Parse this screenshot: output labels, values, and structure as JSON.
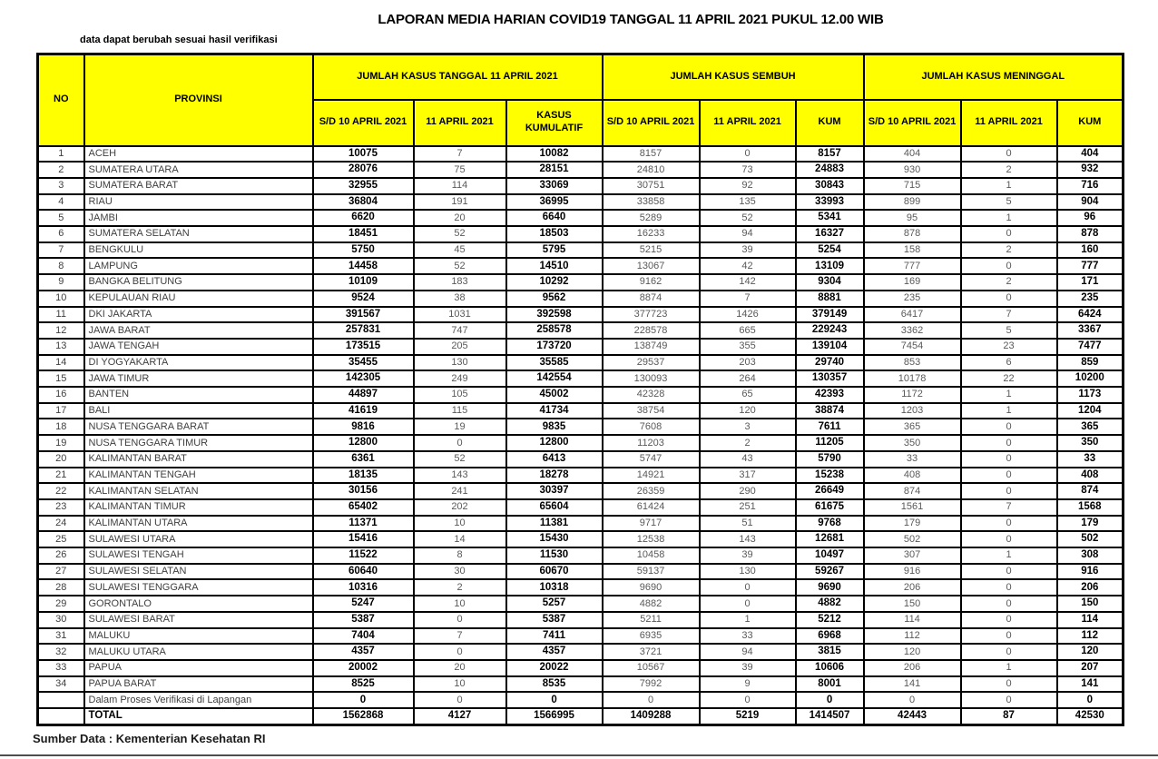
{
  "title": "LAPORAN MEDIA HARIAN COVID19 TANGGAL 11 APRIL 2021 PUKUL 12.00 WIB",
  "note": "data dapat berubah sesuai hasil verifikasi",
  "source": "Sumber Data : Kementerian Kesehatan RI",
  "colors": {
    "header_bg": "#FFFF00",
    "border": "#000000",
    "bold_text": "#000000",
    "muted_text": "#595959"
  },
  "table": {
    "headers": {
      "no": "NO",
      "provinsi": "PROVINSI",
      "groups": [
        {
          "label": "JUMLAH KASUS TANGGAL 11 APRIL 2021",
          "cols": [
            "S/D 10 APRIL 2021",
            "11 APRIL 2021",
            "KASUS KUMULATIF"
          ]
        },
        {
          "label": "JUMLAH KASUS SEMBUH",
          "cols": [
            "S/D 10 APRIL 2021",
            "11 APRIL 2021",
            "KUM"
          ]
        },
        {
          "label": "JUMLAH KASUS MENINGGAL",
          "cols": [
            "S/D 10 APRIL 2021",
            "11 APRIL 2021",
            "KUM"
          ]
        }
      ]
    },
    "rows": [
      {
        "no": "1",
        "provinsi": "ACEH",
        "values": [
          "10075",
          "7",
          "10082",
          "8157",
          "0",
          "8157",
          "404",
          "0",
          "404"
        ]
      },
      {
        "no": "2",
        "provinsi": "SUMATERA UTARA",
        "values": [
          "28076",
          "75",
          "28151",
          "24810",
          "73",
          "24883",
          "930",
          "2",
          "932"
        ]
      },
      {
        "no": "3",
        "provinsi": "SUMATERA BARAT",
        "values": [
          "32955",
          "114",
          "33069",
          "30751",
          "92",
          "30843",
          "715",
          "1",
          "716"
        ]
      },
      {
        "no": "4",
        "provinsi": "RIAU",
        "values": [
          "36804",
          "191",
          "36995",
          "33858",
          "135",
          "33993",
          "899",
          "5",
          "904"
        ]
      },
      {
        "no": "5",
        "provinsi": "JAMBI",
        "values": [
          "6620",
          "20",
          "6640",
          "5289",
          "52",
          "5341",
          "95",
          "1",
          "96"
        ]
      },
      {
        "no": "6",
        "provinsi": "SUMATERA SELATAN",
        "values": [
          "18451",
          "52",
          "18503",
          "16233",
          "94",
          "16327",
          "878",
          "0",
          "878"
        ]
      },
      {
        "no": "7",
        "provinsi": "BENGKULU",
        "values": [
          "5750",
          "45",
          "5795",
          "5215",
          "39",
          "5254",
          "158",
          "2",
          "160"
        ]
      },
      {
        "no": "8",
        "provinsi": "LAMPUNG",
        "values": [
          "14458",
          "52",
          "14510",
          "13067",
          "42",
          "13109",
          "777",
          "0",
          "777"
        ]
      },
      {
        "no": "9",
        "provinsi": "BANGKA BELITUNG",
        "values": [
          "10109",
          "183",
          "10292",
          "9162",
          "142",
          "9304",
          "169",
          "2",
          "171"
        ]
      },
      {
        "no": "10",
        "provinsi": "KEPULAUAN RIAU",
        "values": [
          "9524",
          "38",
          "9562",
          "8874",
          "7",
          "8881",
          "235",
          "0",
          "235"
        ]
      },
      {
        "no": "11",
        "provinsi": "DKI JAKARTA",
        "values": [
          "391567",
          "1031",
          "392598",
          "377723",
          "1426",
          "379149",
          "6417",
          "7",
          "6424"
        ]
      },
      {
        "no": "12",
        "provinsi": "JAWA BARAT",
        "values": [
          "257831",
          "747",
          "258578",
          "228578",
          "665",
          "229243",
          "3362",
          "5",
          "3367"
        ]
      },
      {
        "no": "13",
        "provinsi": "JAWA TENGAH",
        "values": [
          "173515",
          "205",
          "173720",
          "138749",
          "355",
          "139104",
          "7454",
          "23",
          "7477"
        ]
      },
      {
        "no": "14",
        "provinsi": "DI YOGYAKARTA",
        "values": [
          "35455",
          "130",
          "35585",
          "29537",
          "203",
          "29740",
          "853",
          "6",
          "859"
        ]
      },
      {
        "no": "15",
        "provinsi": "JAWA TIMUR",
        "values": [
          "142305",
          "249",
          "142554",
          "130093",
          "264",
          "130357",
          "10178",
          "22",
          "10200"
        ]
      },
      {
        "no": "16",
        "provinsi": "BANTEN",
        "values": [
          "44897",
          "105",
          "45002",
          "42328",
          "65",
          "42393",
          "1172",
          "1",
          "1173"
        ]
      },
      {
        "no": "17",
        "provinsi": "BALI",
        "values": [
          "41619",
          "115",
          "41734",
          "38754",
          "120",
          "38874",
          "1203",
          "1",
          "1204"
        ]
      },
      {
        "no": "18",
        "provinsi": "NUSA TENGGARA BARAT",
        "values": [
          "9816",
          "19",
          "9835",
          "7608",
          "3",
          "7611",
          "365",
          "0",
          "365"
        ]
      },
      {
        "no": "19",
        "provinsi": "NUSA TENGGARA TIMUR",
        "values": [
          "12800",
          "0",
          "12800",
          "11203",
          "2",
          "11205",
          "350",
          "0",
          "350"
        ]
      },
      {
        "no": "20",
        "provinsi": "KALIMANTAN BARAT",
        "values": [
          "6361",
          "52",
          "6413",
          "5747",
          "43",
          "5790",
          "33",
          "0",
          "33"
        ]
      },
      {
        "no": "21",
        "provinsi": "KALIMANTAN TENGAH",
        "values": [
          "18135",
          "143",
          "18278",
          "14921",
          "317",
          "15238",
          "408",
          "0",
          "408"
        ]
      },
      {
        "no": "22",
        "provinsi": "KALIMANTAN SELATAN",
        "values": [
          "30156",
          "241",
          "30397",
          "26359",
          "290",
          "26649",
          "874",
          "0",
          "874"
        ]
      },
      {
        "no": "23",
        "provinsi": "KALIMANTAN TIMUR",
        "values": [
          "65402",
          "202",
          "65604",
          "61424",
          "251",
          "61675",
          "1561",
          "7",
          "1568"
        ]
      },
      {
        "no": "24",
        "provinsi": "KALIMANTAN UTARA",
        "values": [
          "11371",
          "10",
          "11381",
          "9717",
          "51",
          "9768",
          "179",
          "0",
          "179"
        ]
      },
      {
        "no": "25",
        "provinsi": "SULAWESI UTARA",
        "values": [
          "15416",
          "14",
          "15430",
          "12538",
          "143",
          "12681",
          "502",
          "0",
          "502"
        ]
      },
      {
        "no": "26",
        "provinsi": "SULAWESI TENGAH",
        "values": [
          "11522",
          "8",
          "11530",
          "10458",
          "39",
          "10497",
          "307",
          "1",
          "308"
        ]
      },
      {
        "no": "27",
        "provinsi": "SULAWESI SELATAN",
        "values": [
          "60640",
          "30",
          "60670",
          "59137",
          "130",
          "59267",
          "916",
          "0",
          "916"
        ]
      },
      {
        "no": "28",
        "provinsi": "SULAWESI TENGGARA",
        "values": [
          "10316",
          "2",
          "10318",
          "9690",
          "0",
          "9690",
          "206",
          "0",
          "206"
        ]
      },
      {
        "no": "29",
        "provinsi": "GORONTALO",
        "values": [
          "5247",
          "10",
          "5257",
          "4882",
          "0",
          "4882",
          "150",
          "0",
          "150"
        ]
      },
      {
        "no": "30",
        "provinsi": "SULAWESI BARAT",
        "values": [
          "5387",
          "0",
          "5387",
          "5211",
          "1",
          "5212",
          "114",
          "0",
          "114"
        ]
      },
      {
        "no": "31",
        "provinsi": "MALUKU",
        "values": [
          "7404",
          "7",
          "7411",
          "6935",
          "33",
          "6968",
          "112",
          "0",
          "112"
        ]
      },
      {
        "no": "32",
        "provinsi": "MALUKU UTARA",
        "values": [
          "4357",
          "0",
          "4357",
          "3721",
          "94",
          "3815",
          "120",
          "0",
          "120"
        ]
      },
      {
        "no": "33",
        "provinsi": "PAPUA",
        "values": [
          "20002",
          "20",
          "20022",
          "10567",
          "39",
          "10606",
          "206",
          "1",
          "207"
        ]
      },
      {
        "no": "34",
        "provinsi": "PAPUA BARAT",
        "values": [
          "8525",
          "10",
          "8535",
          "7992",
          "9",
          "8001",
          "141",
          "0",
          "141"
        ]
      }
    ],
    "verification_row": {
      "label": "Dalam Proses Verifikasi di Lapangan",
      "values": [
        "0",
        "0",
        "0",
        "0",
        "0",
        "0",
        "0",
        "0",
        "0"
      ]
    },
    "total_row": {
      "label": "TOTAL",
      "values": [
        "1562868",
        "4127",
        "1566995",
        "1409288",
        "5219",
        "1414507",
        "42443",
        "87",
        "42530"
      ]
    }
  }
}
